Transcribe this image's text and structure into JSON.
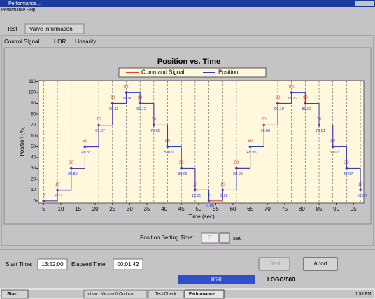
{
  "window": {
    "title": "Performance...",
    "menu": [
      "Performance",
      "Help"
    ],
    "tabs": [
      "Test",
      "Valve Information"
    ],
    "subtabs": [
      "Control Signal",
      "HDR",
      "Linearity"
    ]
  },
  "chart_data": {
    "type": "line",
    "title": "Position vs. Time",
    "x_label": "Time (sec)",
    "y_label": "Position (%)",
    "x": [
      5,
      9,
      13,
      17,
      21,
      25,
      29,
      33,
      37,
      41,
      45,
      49,
      53,
      57,
      61,
      65,
      69,
      73,
      77,
      81,
      85,
      89,
      93,
      97
    ],
    "series": [
      {
        "name": "Command Signal",
        "color": "#e8402a",
        "values": [
          0,
          10,
          30,
          50,
          70,
          90,
          100,
          90,
          70,
          50,
          30,
          10,
          0,
          10,
          30,
          50,
          70,
          90,
          100,
          90,
          70,
          50,
          30,
          10
        ]
      },
      {
        "name": "Position",
        "color": "#2a3cc8",
        "values": [
          0,
          9.71,
          29.8,
          49.87,
          69.87,
          90.11,
          99.8,
          90.12,
          70.05,
          50,
          30.05,
          10.05,
          0.86,
          9.92,
          30.09,
          49.95,
          70.06,
          90.1,
          99.82,
          89.93,
          70.01,
          50.07,
          30.07,
          10
        ],
        "value_labels": [
          null,
          "9.71",
          "29.80",
          "49.87",
          "69.87",
          "90.11",
          "99.80",
          "90.12",
          "70.05",
          "50.00",
          "30.05",
          "10.05",
          "0.86",
          "9.92",
          "30.09",
          "49.95",
          "70.06",
          "90.10",
          "99.82",
          "89.93",
          "70.01",
          "50.07",
          "30.07",
          "10.00"
        ]
      }
    ],
    "xlim": [
      3.5,
      98
    ],
    "ylim": [
      -2,
      111
    ],
    "xticks": [
      5,
      10,
      15,
      20,
      25,
      30,
      35,
      40,
      45,
      50,
      55,
      60,
      65,
      70,
      75,
      80,
      85,
      90,
      95
    ],
    "yticks": [
      0,
      10,
      20,
      30,
      40,
      50,
      60,
      70,
      80,
      90,
      100,
      110
    ],
    "grid": true,
    "legend": "top"
  },
  "settings": {
    "label": "Position Setting Time:",
    "value": "3",
    "unit": "sec"
  },
  "status": {
    "start_label": "Start Time:",
    "start_value": "13:52:00",
    "elapsed_label": "Elapsed Time:",
    "elapsed_value": "00:01:42",
    "buttons": [
      "Start",
      "Abort"
    ],
    "progress": "86%",
    "device": "LOGO!500"
  },
  "taskbar": {
    "start": "Start",
    "tasks": [
      "Inbox - Microsoft Outlook",
      "TechCheck",
      "Performance"
    ],
    "clock": "1:53 PM"
  }
}
